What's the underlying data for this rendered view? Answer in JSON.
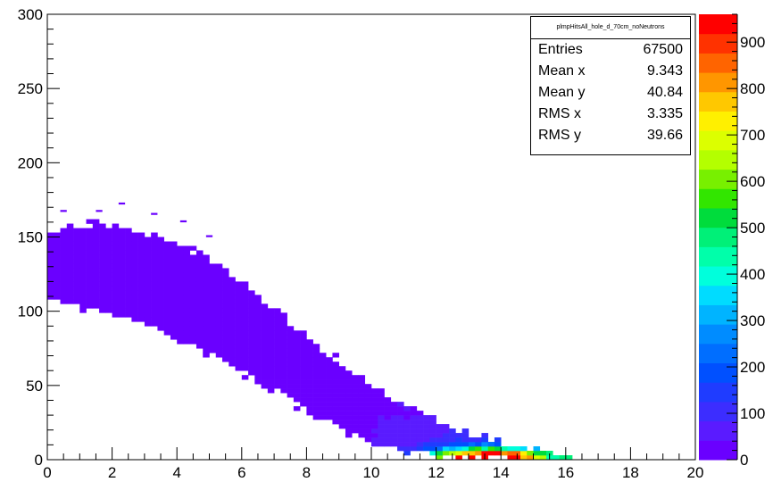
{
  "stats": {
    "title": "plmpHitsAll_hole_d_70cm_noNeutrons",
    "rows": [
      {
        "label": "Entries",
        "value": "67500"
      },
      {
        "label": "Mean x",
        "value": "9.343"
      },
      {
        "label": "Mean y",
        "value": "40.84"
      },
      {
        "label": "RMS x",
        "value": "3.335"
      },
      {
        "label": "RMS y",
        "value": "39.66"
      }
    ]
  },
  "chart_data": {
    "type": "heatmap",
    "title": "",
    "xlabel": "",
    "ylabel": "",
    "xlim": [
      0,
      20
    ],
    "ylim": [
      0,
      300
    ],
    "zlim": [
      0,
      960
    ],
    "x_ticks": [
      0,
      2,
      4,
      6,
      8,
      10,
      12,
      14,
      16,
      18,
      20
    ],
    "y_ticks": [
      0,
      50,
      100,
      150,
      200,
      250,
      300
    ],
    "z_ticks": [
      0,
      100,
      200,
      300,
      400,
      500,
      600,
      700,
      800,
      900
    ],
    "palette": [
      "#6a00ff",
      "#5a1bff",
      "#3c2dff",
      "#1f3cff",
      "#0050ff",
      "#006eff",
      "#008cff",
      "#00b4ff",
      "#00dcff",
      "#00ffdc",
      "#00ffaa",
      "#00f078",
      "#00dc3c",
      "#32e600",
      "#78f000",
      "#b4ff00",
      "#dcff00",
      "#fff000",
      "#ffc800",
      "#ff9600",
      "#ff6400",
      "#ff3200",
      "#ff0000"
    ],
    "profile": {
      "x": [
        0,
        1,
        2,
        3,
        4,
        5,
        6,
        7,
        8,
        9,
        10,
        11,
        12,
        13,
        14,
        15,
        16
      ],
      "y_low": [
        108,
        104,
        98,
        92,
        82,
        72,
        60,
        48,
        34,
        22,
        12,
        6,
        4,
        3,
        2,
        1,
        0
      ],
      "y_high": [
        150,
        157,
        157,
        152,
        145,
        133,
        118,
        100,
        82,
        65,
        48,
        35,
        25,
        16,
        10,
        6,
        3
      ]
    },
    "peak": {
      "x": 13.5,
      "y": 2,
      "value": 960
    }
  }
}
